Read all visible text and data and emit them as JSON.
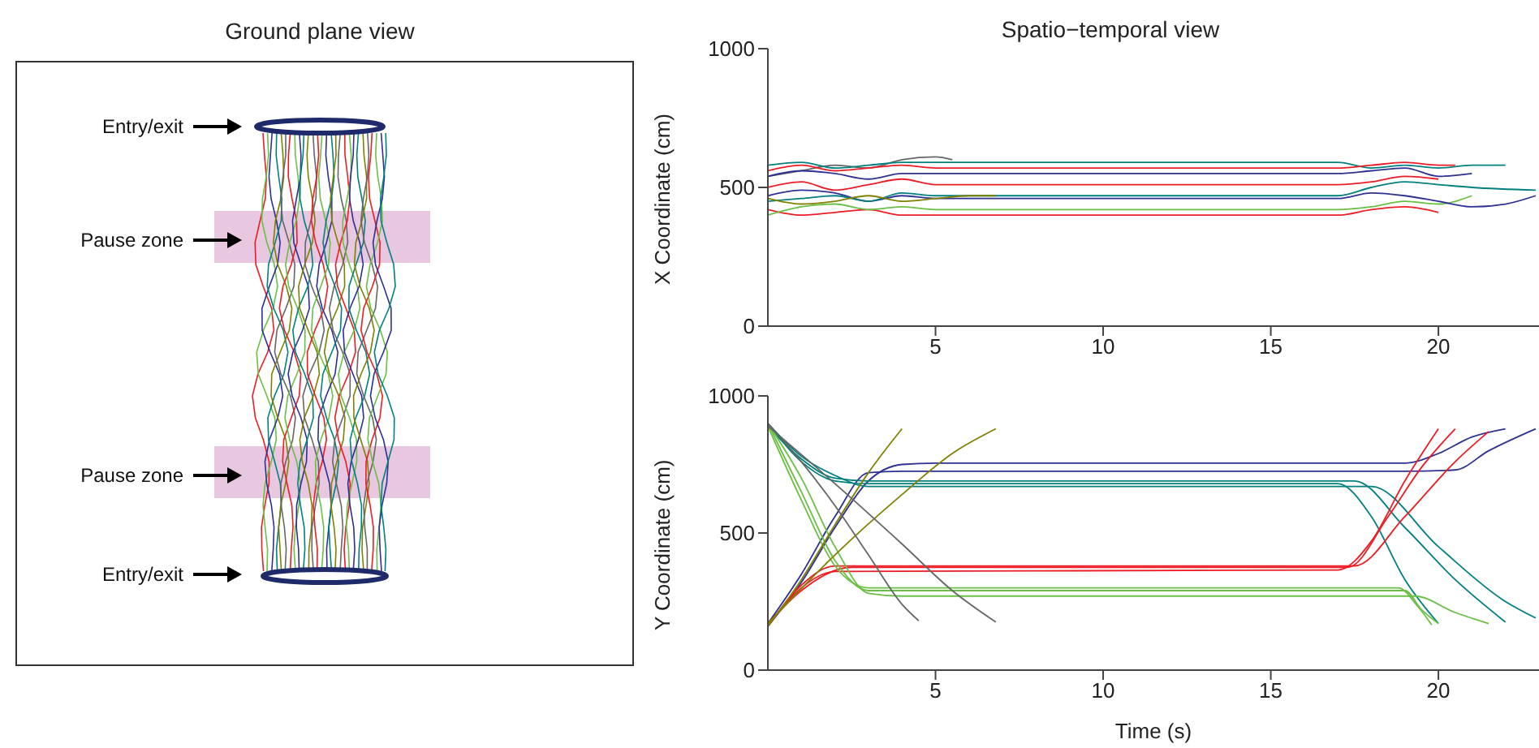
{
  "chart_data": [
    {
      "type": "other",
      "title": "Ground plane view",
      "annotations": [
        "Entry/exit",
        "Pause zone",
        "Pause zone",
        "Entry/exit"
      ]
    },
    {
      "type": "line",
      "title": "Spatio−temporal view",
      "ylabel": "X Coordinate (cm)",
      "xlim": [
        0,
        23
      ],
      "xticks": [
        5,
        10,
        15,
        20
      ],
      "ylim": [
        0,
        1000
      ],
      "yticks": [
        0,
        500,
        1000
      ],
      "marker": "none",
      "series": [
        {
          "color": "#ed1c24",
          "x": [
            0,
            1,
            2,
            3,
            4,
            5,
            17,
            18,
            19,
            20
          ],
          "values": [
            420,
            400,
            410,
            420,
            400,
            400,
            400,
            420,
            430,
            410
          ]
        },
        {
          "color": "#6abf45",
          "x": [
            0,
            1,
            2,
            3,
            4,
            5,
            17,
            18,
            19,
            20,
            21
          ],
          "values": [
            400,
            430,
            440,
            420,
            430,
            420,
            420,
            430,
            450,
            440,
            470
          ]
        },
        {
          "color": "#2e3192",
          "x": [
            0,
            1,
            2,
            3,
            4,
            5,
            17,
            18,
            19,
            20,
            21,
            22,
            22.9
          ],
          "values": [
            470,
            490,
            480,
            450,
            470,
            460,
            460,
            480,
            470,
            450,
            430,
            440,
            470
          ]
        },
        {
          "color": "#00807f",
          "x": [
            0,
            1,
            2,
            3,
            4,
            5,
            17,
            18,
            19,
            20,
            21,
            22.9
          ],
          "values": [
            450,
            460,
            470,
            450,
            480,
            470,
            470,
            500,
            520,
            510,
            500,
            490
          ]
        },
        {
          "color": "#ed1c24",
          "x": [
            0,
            1,
            2,
            3,
            4,
            5,
            17,
            18,
            19,
            20
          ],
          "values": [
            500,
            520,
            490,
            510,
            530,
            510,
            510,
            520,
            540,
            530
          ]
        },
        {
          "color": "#666666",
          "x": [
            0,
            1,
            2,
            3,
            4,
            5,
            5.5
          ],
          "values": [
            540,
            560,
            580,
            570,
            600,
            610,
            600
          ]
        },
        {
          "color": "#00807f",
          "x": [
            0,
            1,
            2,
            3,
            4,
            5,
            17,
            18,
            19,
            20,
            21,
            22
          ],
          "values": [
            580,
            590,
            570,
            580,
            590,
            590,
            590,
            570,
            580,
            570,
            580,
            580
          ]
        },
        {
          "color": "#2e3192",
          "x": [
            0,
            1,
            2,
            3,
            4,
            5,
            17,
            18,
            19,
            20,
            21
          ],
          "values": [
            540,
            560,
            550,
            530,
            550,
            550,
            550,
            560,
            570,
            540,
            550
          ]
        },
        {
          "color": "#808000",
          "x": [
            0,
            1,
            2,
            3,
            4,
            5,
            6,
            6.8
          ],
          "values": [
            460,
            440,
            450,
            470,
            450,
            460,
            470,
            470
          ]
        },
        {
          "color": "#ed1c24",
          "x": [
            0,
            1,
            2,
            3,
            4,
            5,
            17,
            18,
            19,
            20,
            20.5
          ],
          "values": [
            560,
            580,
            560,
            570,
            580,
            570,
            570,
            580,
            590,
            580,
            580
          ]
        }
      ]
    },
    {
      "type": "line",
      "ylabel": "Y Coordinate (cm)",
      "xlabel": "Time (s)",
      "xlim": [
        0,
        23
      ],
      "xticks": [
        5,
        10,
        15,
        20
      ],
      "ylim": [
        0,
        1000
      ],
      "yticks": [
        0,
        500,
        1000
      ],
      "marker": "none",
      "series": [
        {
          "color": "#2e3192",
          "x": [
            0,
            1,
            2,
            3,
            4,
            5,
            19,
            20,
            21,
            22
          ],
          "values": [
            160,
            320,
            520,
            690,
            750,
            755,
            755,
            790,
            850,
            880
          ]
        },
        {
          "color": "#2e3192",
          "x": [
            0,
            1,
            2,
            3,
            4,
            19,
            20.5,
            21.5,
            22.9
          ],
          "values": [
            170,
            350,
            560,
            720,
            725,
            725,
            730,
            800,
            880
          ]
        },
        {
          "color": "#00807f",
          "x": [
            0,
            1,
            2,
            3,
            17,
            18,
            19,
            20
          ],
          "values": [
            900,
            760,
            690,
            680,
            680,
            560,
            330,
            170
          ]
        },
        {
          "color": "#00807f",
          "x": [
            0,
            1,
            2,
            3,
            17.5,
            19,
            20.5,
            22
          ],
          "values": [
            890,
            770,
            700,
            690,
            690,
            520,
            330,
            175
          ]
        },
        {
          "color": "#00807f",
          "x": [
            0,
            1,
            2,
            3,
            18,
            20,
            22,
            22.9
          ],
          "values": [
            900,
            780,
            710,
            670,
            670,
            450,
            250,
            190
          ]
        },
        {
          "color": "#ed1c24",
          "x": [
            0,
            1,
            2,
            17,
            18,
            19,
            20
          ],
          "values": [
            160,
            300,
            360,
            365,
            470,
            690,
            880
          ]
        },
        {
          "color": "#ed1c24",
          "x": [
            0,
            1,
            2.5,
            17.3,
            18.5,
            19.5,
            20.5
          ],
          "values": [
            170,
            290,
            375,
            375,
            560,
            740,
            880
          ]
        },
        {
          "color": "#ed1c24",
          "x": [
            0,
            1,
            2,
            17.5,
            19,
            20.5,
            21.5
          ],
          "values": [
            160,
            310,
            380,
            380,
            560,
            760,
            870
          ]
        },
        {
          "color": "#6abf45",
          "x": [
            0,
            1,
            2,
            3,
            19,
            19.5,
            20
          ],
          "values": [
            900,
            650,
            400,
            290,
            290,
            220,
            170
          ]
        },
        {
          "color": "#6abf45",
          "x": [
            0,
            1,
            2,
            3,
            4,
            19.3,
            20.5,
            21.5
          ],
          "values": [
            900,
            700,
            450,
            280,
            270,
            270,
            210,
            170
          ]
        },
        {
          "color": "#6abf45",
          "x": [
            0,
            1,
            2,
            3,
            18.8,
            19.4,
            19.8
          ],
          "values": [
            890,
            620,
            380,
            300,
            300,
            230,
            165
          ]
        },
        {
          "color": "#808000",
          "x": [
            0,
            1,
            2,
            3,
            4
          ],
          "values": [
            160,
            330,
            530,
            720,
            880
          ]
        },
        {
          "color": "#808000",
          "x": [
            0,
            2,
            4,
            5.5,
            6.8
          ],
          "values": [
            170,
            420,
            640,
            790,
            880
          ]
        },
        {
          "color": "#666666",
          "x": [
            0,
            1,
            2,
            3,
            4,
            4.5
          ],
          "values": [
            900,
            760,
            600,
            420,
            240,
            180
          ]
        },
        {
          "color": "#666666",
          "x": [
            0,
            2,
            4,
            5.5,
            6.8
          ],
          "values": [
            890,
            680,
            460,
            290,
            175
          ]
        }
      ]
    }
  ]
}
